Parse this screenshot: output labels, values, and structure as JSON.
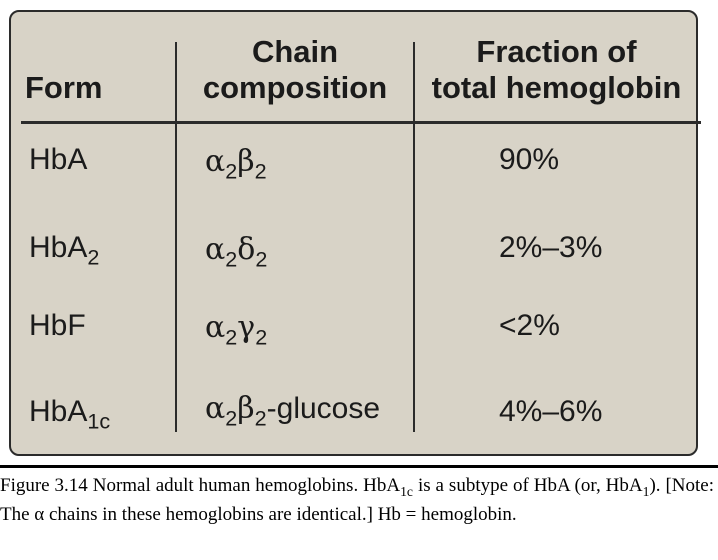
{
  "table": {
    "headers": {
      "form": "Form",
      "chain_line1": "Chain",
      "chain_line2": "composition",
      "fraction_line1": "Fraction of",
      "fraction_line2": "total hemoglobin"
    },
    "rows": [
      {
        "form": "HbA",
        "form_sub": "",
        "chain_parts": [
          "α",
          "2",
          "β",
          "2",
          ""
        ],
        "fraction": "90%"
      },
      {
        "form": "HbA",
        "form_sub": "2",
        "chain_parts": [
          "α",
          "2",
          "δ",
          "2",
          ""
        ],
        "fraction": "2%–3%"
      },
      {
        "form": "HbF",
        "form_sub": "",
        "chain_parts": [
          "α",
          "2",
          "γ",
          "2",
          ""
        ],
        "fraction": "<2%"
      },
      {
        "form": "HbA",
        "form_sub": "1c",
        "chain_parts": [
          "α",
          "2",
          "β",
          "2",
          "-glucose"
        ],
        "fraction": "4%–6%"
      }
    ]
  },
  "caption": {
    "part1": "Figure 3.14 Normal adult human hemoglobins. HbA",
    "sub1": "1c",
    "part2": " is a subtype of HbA (or, HbA",
    "sub2": "1",
    "part3": "). [Note: The α chains in these hemoglobins are identical.] Hb = hemoglobin."
  }
}
